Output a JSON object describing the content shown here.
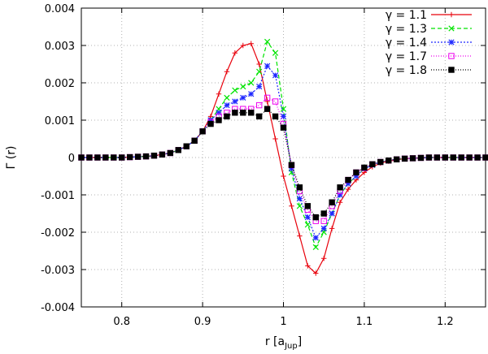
{
  "chart_data": {
    "type": "line",
    "title": "",
    "xlabel": {
      "main": "r [a",
      "sub": "Jup",
      "close": "]"
    },
    "ylabel": "Γ (r)",
    "xlim": [
      0.75,
      1.25
    ],
    "ylim": [
      -0.004,
      0.004
    ],
    "grid": true,
    "legend_position": "top-right",
    "x_ticks": [
      0.8,
      0.9,
      1.0,
      1.1,
      1.2
    ],
    "x_tick_labels": [
      "0.8",
      "0.9",
      "1",
      "1.1",
      "1.2"
    ],
    "y_ticks": [
      -0.004,
      -0.003,
      -0.002,
      -0.001,
      0,
      0.001,
      0.002,
      0.003,
      0.004
    ],
    "y_tick_labels": [
      "-0.004",
      "-0.003",
      "-0.002",
      "-0.001",
      "0",
      "0.001",
      "0.002",
      "0.003",
      "0.004"
    ],
    "x": [
      0.75,
      0.76,
      0.77,
      0.78,
      0.79,
      0.8,
      0.81,
      0.82,
      0.83,
      0.84,
      0.85,
      0.86,
      0.87,
      0.88,
      0.89,
      0.9,
      0.91,
      0.92,
      0.93,
      0.94,
      0.95,
      0.96,
      0.97,
      0.98,
      0.99,
      1.0,
      1.01,
      1.02,
      1.03,
      1.04,
      1.05,
      1.06,
      1.07,
      1.08,
      1.09,
      1.1,
      1.11,
      1.12,
      1.13,
      1.14,
      1.15,
      1.16,
      1.17,
      1.18,
      1.19,
      1.2,
      1.21,
      1.22,
      1.23,
      1.24,
      1.25
    ],
    "series": [
      {
        "name": "γ = 1.1",
        "color": "#e8000b",
        "dash": "",
        "marker": "plus",
        "values": [
          0,
          0,
          0,
          0,
          0,
          0,
          1e-05,
          2e-05,
          3e-05,
          5e-05,
          8e-05,
          0.00012,
          0.0002,
          0.0003,
          0.00045,
          0.0007,
          0.0011,
          0.0017,
          0.0023,
          0.0028,
          0.003,
          0.00305,
          0.0025,
          0.0015,
          0.0005,
          -0.0005,
          -0.0013,
          -0.0021,
          -0.0029,
          -0.0031,
          -0.0027,
          -0.0019,
          -0.0012,
          -0.00085,
          -0.0006,
          -0.0004,
          -0.00025,
          -0.00015,
          -0.0001,
          -6e-05,
          -3e-05,
          -2e-05,
          -1e-05,
          0,
          0,
          0,
          0,
          0,
          0,
          0,
          0
        ]
      },
      {
        "name": "γ = 1.3",
        "color": "#00e400",
        "dash": "5,3",
        "marker": "cross",
        "values": [
          0,
          0,
          0,
          0,
          0,
          0,
          1e-05,
          2e-05,
          3e-05,
          5e-05,
          8e-05,
          0.00012,
          0.0002,
          0.0003,
          0.00045,
          0.0007,
          0.001,
          0.0013,
          0.0016,
          0.0018,
          0.0019,
          0.002,
          0.0023,
          0.0031,
          0.0028,
          0.0013,
          -0.0004,
          -0.0013,
          -0.0018,
          -0.0024,
          -0.002,
          -0.0015,
          -0.001,
          -0.0007,
          -0.0005,
          -0.0003,
          -0.0002,
          -0.00012,
          -8e-05,
          -5e-05,
          -3e-05,
          -2e-05,
          -1e-05,
          0,
          0,
          0,
          0,
          0,
          0,
          0,
          0
        ]
      },
      {
        "name": "γ = 1.4",
        "color": "#1f28ff",
        "dash": "2,2",
        "marker": "star",
        "values": [
          0,
          0,
          0,
          0,
          0,
          0,
          1e-05,
          2e-05,
          3e-05,
          5e-05,
          8e-05,
          0.00012,
          0.0002,
          0.0003,
          0.00045,
          0.0007,
          0.001,
          0.0012,
          0.0014,
          0.0015,
          0.0016,
          0.0017,
          0.0019,
          0.00245,
          0.0022,
          0.0011,
          -0.0003,
          -0.0011,
          -0.0016,
          -0.00215,
          -0.0019,
          -0.0015,
          -0.001,
          -0.0007,
          -0.0005,
          -0.0003,
          -0.0002,
          -0.00012,
          -8e-05,
          -5e-05,
          -3e-05,
          -2e-05,
          -1e-05,
          0,
          0,
          0,
          0,
          0,
          0,
          0,
          0
        ]
      },
      {
        "name": "γ = 1.7",
        "color": "#ee00ee",
        "dash": "1,2",
        "marker": "square",
        "values": [
          0,
          0,
          0,
          0,
          0,
          0,
          1e-05,
          2e-05,
          3e-05,
          5e-05,
          8e-05,
          0.00012,
          0.0002,
          0.0003,
          0.00045,
          0.0007,
          0.00095,
          0.0011,
          0.0012,
          0.0013,
          0.0013,
          0.0013,
          0.0014,
          0.0016,
          0.0015,
          0.0009,
          -0.0002,
          -0.0009,
          -0.0014,
          -0.0017,
          -0.0017,
          -0.0013,
          -0.0009,
          -0.0006,
          -0.0004,
          -0.00028,
          -0.00018,
          -0.00012,
          -8e-05,
          -5e-05,
          -3e-05,
          -2e-05,
          -1e-05,
          0,
          0,
          0,
          0,
          0,
          0,
          0,
          0
        ]
      },
      {
        "name": "γ = 1.8",
        "color": "#000000",
        "dash": "1,2",
        "marker": "filled-square",
        "values": [
          0,
          0,
          0,
          0,
          0,
          0,
          1e-05,
          2e-05,
          3e-05,
          5e-05,
          8e-05,
          0.00012,
          0.0002,
          0.0003,
          0.00045,
          0.0007,
          0.0009,
          0.001,
          0.0011,
          0.0012,
          0.0012,
          0.0012,
          0.0011,
          0.0013,
          0.0011,
          0.0008,
          -0.0002,
          -0.0008,
          -0.0013,
          -0.0016,
          -0.0015,
          -0.0012,
          -0.0008,
          -0.0006,
          -0.0004,
          -0.00027,
          -0.00018,
          -0.00012,
          -8e-05,
          -5e-05,
          -3e-05,
          -2e-05,
          -1e-05,
          0,
          0,
          0,
          0,
          0,
          0,
          0,
          0
        ]
      }
    ]
  }
}
